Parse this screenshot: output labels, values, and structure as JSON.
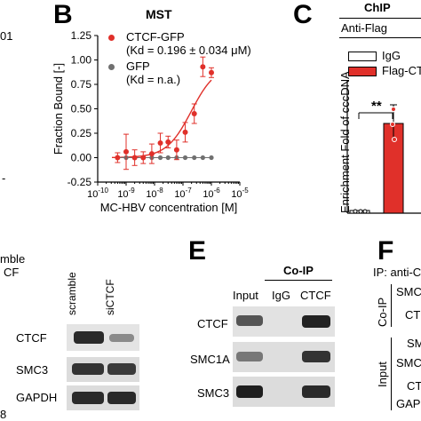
{
  "panels": {
    "b": {
      "label": "B",
      "title": "MST"
    },
    "c": {
      "label": "C",
      "title": "ChIP",
      "subtitle": "Anti-Flag"
    },
    "e": {
      "label": "E"
    },
    "f": {
      "label": "F"
    }
  },
  "left_fragments": {
    "top": "01",
    "ble": "mble",
    "cf": "CF",
    "eight": "8",
    "dot": "-"
  },
  "mst": {
    "legend": [
      {
        "name": "CTCF-GFP",
        "kd": "(Kd = 0.196 ± 0.034 μM)",
        "color": "#e0302a"
      },
      {
        "name": "GFP",
        "kd": "(Kd = n.a.)",
        "color": "#707070"
      }
    ]
  },
  "chart_data": [
    {
      "type": "scatter",
      "title": "MST",
      "xlabel": "MC-HBV concentration [M]",
      "ylabel": "Fraction Bound [-]",
      "xscale": "log",
      "xlim": [
        1e-10,
        1e-05
      ],
      "ylim": [
        -0.25,
        1.25
      ],
      "x_ticks": [
        "10^-10",
        "10^-9",
        "10^-8",
        "10^-7",
        "10^-6",
        "10^-5"
      ],
      "y_ticks": [
        "-0.25",
        "0.00",
        "0.25",
        "0.50",
        "0.75",
        "1.00",
        "1.25"
      ],
      "series": [
        {
          "name": "CTCF-GFP",
          "color": "#e0302a",
          "x": [
            5e-10,
            1e-09,
            2e-09,
            4e-09,
            8e-09,
            1.6e-08,
            3e-08,
            6e-08,
            1.2e-07,
            2.5e-07,
            5e-07,
            1e-06
          ],
          "y": [
            0.0,
            0.06,
            0.0,
            0.0,
            0.04,
            0.15,
            0.16,
            0.08,
            0.26,
            0.45,
            0.93,
            0.87
          ],
          "err": [
            0.05,
            0.18,
            0.08,
            0.06,
            0.1,
            0.1,
            0.06,
            0.1,
            0.1,
            0.1,
            0.1,
            0.05
          ]
        },
        {
          "name": "GFP",
          "color": "#707070",
          "x": [
            5e-10,
            1e-09,
            2e-09,
            4e-09,
            8e-09,
            1.6e-08,
            3e-08,
            6e-08,
            1.2e-07,
            2.5e-07,
            5e-07,
            1e-06
          ],
          "y": [
            0,
            0,
            0,
            0,
            0,
            0,
            0,
            0,
            0,
            0,
            0,
            0
          ]
        }
      ]
    },
    {
      "type": "bar",
      "ylabel": "Enrichment Fold of cccDNA",
      "legend": [
        "IgG",
        "Flag-CTC"
      ],
      "series": [
        {
          "name": "IgG",
          "values": [
            0.5
          ],
          "color": "#ffffff"
        },
        {
          "name": "Flag-CTC",
          "values": [
            88
          ],
          "color": "#e0302a"
        }
      ],
      "annotation": "**"
    }
  ],
  "blot_d": {
    "lanes": [
      "scramble",
      "siCTCF"
    ],
    "rows": [
      "CTCF",
      "SMC3",
      "GAPDH"
    ]
  },
  "blot_e": {
    "header": "Co-IP",
    "lanes": [
      "Input",
      "IgG",
      "CTCF"
    ],
    "rows": [
      "CTCF",
      "SMC1A",
      "SMC3"
    ]
  },
  "panel_f": {
    "ip": "IP: anti-C",
    "coip": "Co-IP",
    "input": "Input",
    "coip_rows": [
      "SMC",
      "CT"
    ],
    "input_rows": [
      "SM",
      "SMC",
      "CT",
      "GAP"
    ]
  }
}
